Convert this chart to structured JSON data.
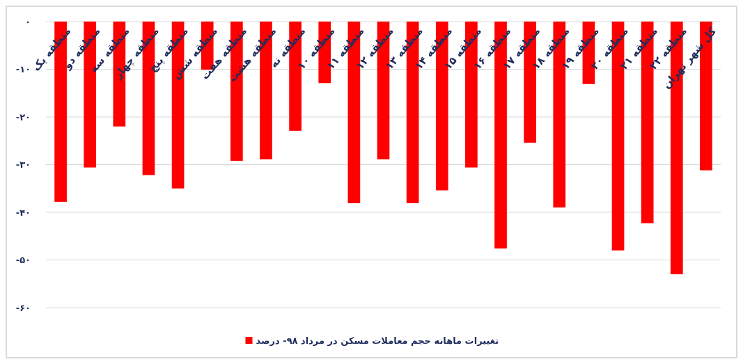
{
  "chart_data": {
    "type": "bar",
    "categories": [
      "منطقه یک",
      "منطقه دو",
      "منطقه سه",
      "منطقه چهار",
      "منطقه پنج",
      "منطقه شش",
      "منطقه هفت",
      "منطقه هشت",
      "منطقه نه",
      "منطقه ۱۰",
      "منطقه ۱۱",
      "منطقه ۱۲",
      "منطقه ۱۳",
      "منطقه ۱۴",
      "منطقه ۱۵",
      "منطقه ۱۶",
      "منطقه ۱۷",
      "منطقه ۱۸",
      "منطقه ۱۹",
      "منطقه ۲۰",
      "منطقه ۲۱",
      "منطقه ۲۲",
      "کل شهر تهران"
    ],
    "series": [
      {
        "name": "تغییرات ماهانه حجم معاملات مسکن در مرداد ۹۸- درصد",
        "color": "#ff0000",
        "values": [
          -37.8,
          -30.6,
          -22,
          -32.2,
          -35,
          -10.1,
          -29.2,
          -28.9,
          -22.9,
          -12.9,
          -38.1,
          -28.9,
          -38.1,
          -35.4,
          -30.6,
          -47.6,
          -25.4,
          -39,
          -13.1,
          -48,
          -42.3,
          -53,
          -31.2
        ]
      }
    ],
    "ylim": [
      -60,
      0
    ],
    "yticks": [
      {
        "value": 0,
        "label": "۰"
      },
      {
        "value": -10,
        "label": "-۱۰"
      },
      {
        "value": -20,
        "label": "-۲۰"
      },
      {
        "value": -30,
        "label": "-۳۰"
      },
      {
        "value": -40,
        "label": "-۴۰"
      },
      {
        "value": -50,
        "label": "-۵۰"
      },
      {
        "value": -60,
        "label": "-۶۰"
      }
    ],
    "grid": "y",
    "legend": "bottom"
  }
}
